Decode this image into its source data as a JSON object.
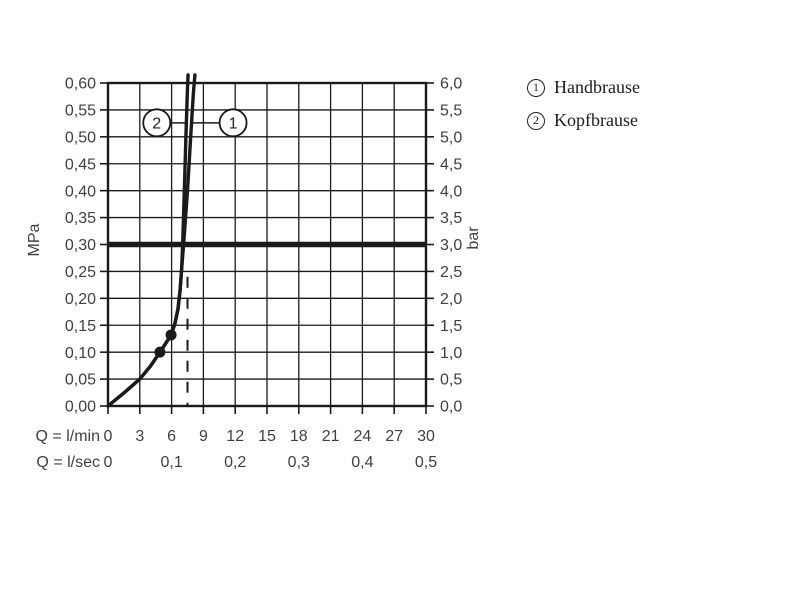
{
  "colors": {
    "ink": "#1a1a1a",
    "label_text": "#3f3f3f"
  },
  "legend": {
    "items": [
      {
        "id": "1",
        "label": "Handbrause"
      },
      {
        "id": "2",
        "label": "Kopfbrause"
      }
    ]
  },
  "chart_data": {
    "type": "line",
    "title": "",
    "grid": true,
    "x_axis": {
      "caption_row1": "Q = l/min",
      "caption_row2": "Q = l/sec",
      "min": 0,
      "max": 30,
      "ticks_lmin": [
        {
          "value": 0,
          "label": "0"
        },
        {
          "value": 3,
          "label": "3"
        },
        {
          "value": 6,
          "label": "6"
        },
        {
          "value": 9,
          "label": "9"
        },
        {
          "value": 12,
          "label": "12"
        },
        {
          "value": 15,
          "label": "15"
        },
        {
          "value": 18,
          "label": "18"
        },
        {
          "value": 21,
          "label": "21"
        },
        {
          "value": 24,
          "label": "24"
        },
        {
          "value": 27,
          "label": "27"
        },
        {
          "value": 30,
          "label": "30"
        }
      ],
      "ticks_lsec": [
        {
          "at_lmin": 0,
          "label": "0"
        },
        {
          "at_lmin": 6,
          "label": "0,1"
        },
        {
          "at_lmin": 12,
          "label": "0,2"
        },
        {
          "at_lmin": 18,
          "label": "0,3"
        },
        {
          "at_lmin": 24,
          "label": "0,4"
        },
        {
          "at_lmin": 30,
          "label": "0,5"
        }
      ]
    },
    "y_axis_left": {
      "label": "MPa",
      "min": 0,
      "max": 0.6,
      "ticks": [
        {
          "value": 0.6,
          "label": "0,60"
        },
        {
          "value": 0.55,
          "label": "0,55"
        },
        {
          "value": 0.5,
          "label": "0,50"
        },
        {
          "value": 0.45,
          "label": "0,45"
        },
        {
          "value": 0.4,
          "label": "0,40"
        },
        {
          "value": 0.35,
          "label": "0,35"
        },
        {
          "value": 0.3,
          "label": "0,30"
        },
        {
          "value": 0.25,
          "label": "0,25"
        },
        {
          "value": 0.2,
          "label": "0,20"
        },
        {
          "value": 0.15,
          "label": "0,15"
        },
        {
          "value": 0.1,
          "label": "0,10"
        },
        {
          "value": 0.05,
          "label": "0,05"
        },
        {
          "value": 0.0,
          "label": "0,00"
        }
      ]
    },
    "y_axis_right": {
      "label": "bar",
      "ticks": [
        {
          "value_mpa": 0.6,
          "label": "6,0"
        },
        {
          "value_mpa": 0.55,
          "label": "5,5"
        },
        {
          "value_mpa": 0.5,
          "label": "5,0"
        },
        {
          "value_mpa": 0.45,
          "label": "4,5"
        },
        {
          "value_mpa": 0.4,
          "label": "4,0"
        },
        {
          "value_mpa": 0.35,
          "label": "3,5"
        },
        {
          "value_mpa": 0.3,
          "label": "3,0"
        },
        {
          "value_mpa": 0.25,
          "label": "2,5"
        },
        {
          "value_mpa": 0.2,
          "label": "2,0"
        },
        {
          "value_mpa": 0.15,
          "label": "1,5"
        },
        {
          "value_mpa": 0.1,
          "label": "1,0"
        },
        {
          "value_mpa": 0.05,
          "label": "0,5"
        },
        {
          "value_mpa": 0.0,
          "label": "0,0"
        }
      ]
    },
    "reference_line": {
      "y_mpa": 0.3,
      "equivalent_bar": 3.0
    },
    "dashed_line": {
      "x_lmin": 7.5,
      "from_mpa": 0,
      "to_mpa": 0.24
    },
    "series": [
      {
        "id": "1",
        "name": "Handbrause",
        "points": [
          [
            0,
            0
          ],
          [
            1.6,
            0.026
          ],
          [
            3,
            0.05
          ],
          [
            4,
            0.074
          ],
          [
            4.9,
            0.1
          ],
          [
            5.5,
            0.118
          ],
          [
            5.95,
            0.132
          ],
          [
            6.3,
            0.152
          ],
          [
            6.6,
            0.18
          ],
          [
            6.8,
            0.215
          ],
          [
            6.95,
            0.255
          ],
          [
            7.15,
            0.305
          ],
          [
            7.5,
            0.4
          ],
          [
            7.8,
            0.5
          ],
          [
            8.05,
            0.58
          ],
          [
            8.2,
            0.615
          ]
        ]
      },
      {
        "id": "2",
        "name": "Kopfbrause",
        "points": [
          [
            0,
            0
          ],
          [
            1.6,
            0.026
          ],
          [
            3,
            0.05
          ],
          [
            4,
            0.074
          ],
          [
            4.9,
            0.1
          ],
          [
            5.5,
            0.118
          ],
          [
            5.95,
            0.132
          ],
          [
            6.3,
            0.152
          ],
          [
            6.6,
            0.18
          ],
          [
            6.8,
            0.215
          ],
          [
            6.95,
            0.255
          ],
          [
            7.05,
            0.305
          ],
          [
            7.2,
            0.4
          ],
          [
            7.35,
            0.5
          ],
          [
            7.48,
            0.58
          ],
          [
            7.55,
            0.615
          ]
        ]
      }
    ],
    "markers": [
      {
        "x_lmin": 4.9,
        "y_mpa": 0.1
      },
      {
        "x_lmin": 5.95,
        "y_mpa": 0.132
      }
    ],
    "annotations": [
      {
        "id": "1",
        "cx_lmin": 11.8,
        "cy_mpa": 0.526,
        "leader_to_lmin": 8.0
      },
      {
        "id": "2",
        "cx_lmin": 4.6,
        "cy_mpa": 0.526,
        "leader_to_lmin": 7.45
      }
    ]
  }
}
